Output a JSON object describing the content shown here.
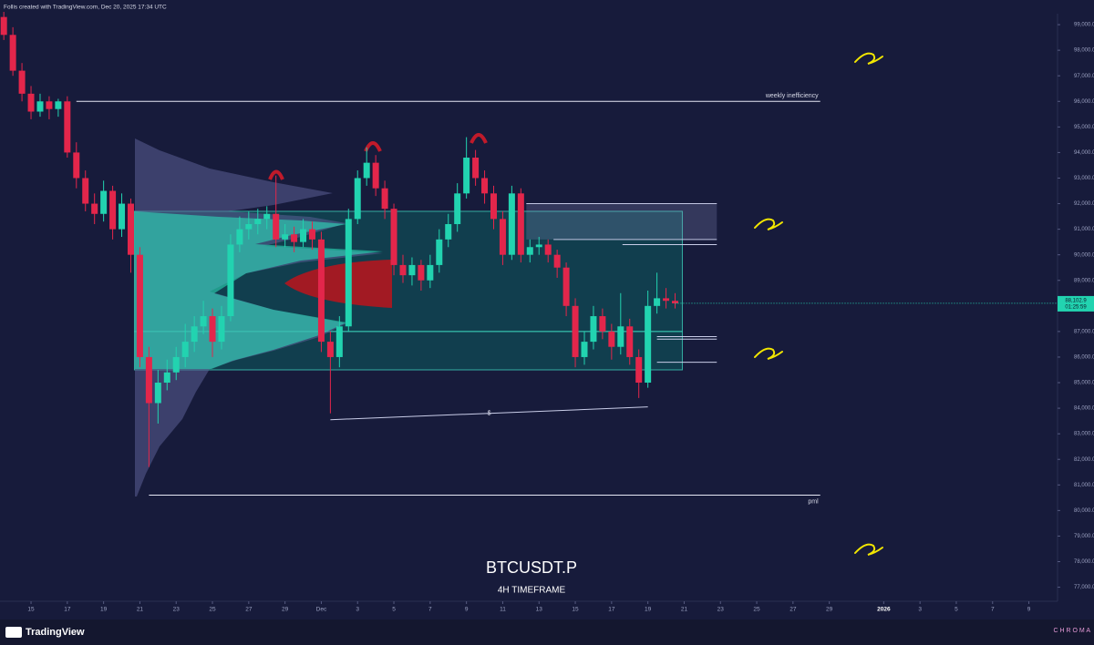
{
  "header": "Follis created with TradingView.com, Dec 20, 2025 17:34 UTC",
  "chart_data": {
    "type": "candlestick",
    "title": "BTCUSDT.P",
    "subtitle": "4H TIMEFRAME",
    "up_color": "#22d3b0",
    "down_color": "#e3264b",
    "x": [
      -1.5,
      -1,
      -0.5,
      0,
      0.5,
      1,
      1.5,
      2,
      2.5,
      3,
      3.5,
      4,
      4.5,
      5,
      5.5,
      6,
      6.5,
      7,
      7.5,
      8,
      8.5,
      9,
      9.5,
      10,
      10.5,
      11,
      11.5,
      12,
      12.5,
      13,
      13.5,
      14,
      14.5,
      15,
      15.5,
      16,
      16.5,
      17,
      17.5,
      18,
      18.5,
      19,
      19.5,
      20,
      20.5,
      21,
      21.5,
      22,
      22.5,
      23,
      23.5,
      24,
      24.5,
      25,
      25.5,
      26,
      26.5,
      27,
      27.5,
      28,
      28.5,
      29,
      29.5,
      30,
      30.5,
      31,
      31.5,
      32,
      32.5,
      33,
      33.5,
      34,
      34.5,
      35,
      35.5
    ],
    "open": [
      99300,
      98600,
      97200,
      96300,
      95600,
      96000,
      95700,
      96000,
      94000,
      93000,
      92000,
      91600,
      92500,
      91000,
      92000,
      90000,
      86000,
      84200,
      85000,
      85400,
      86000,
      86600,
      87200,
      87600,
      86600,
      87600,
      90400,
      91000,
      91200,
      91400,
      91600,
      90600,
      90800,
      90500,
      91000,
      90600,
      86600,
      86000,
      87200,
      91400,
      93000,
      93600,
      92600,
      91800,
      89600,
      89200,
      89600,
      89000,
      89600,
      90600,
      91200,
      92400,
      93800,
      93000,
      92400,
      91400,
      90000,
      92400,
      90000,
      90300,
      90400,
      90000,
      89500,
      88000,
      86000,
      86600,
      87600,
      87000,
      86400,
      87200,
      86000,
      85000,
      88000,
      88300,
      88200
    ],
    "high": [
      99500,
      98900,
      97500,
      96600,
      96300,
      96200,
      96100,
      96200,
      94400,
      93300,
      92400,
      92900,
      92700,
      92400,
      92200,
      90300,
      86400,
      85500,
      85900,
      86400,
      87300,
      87600,
      88200,
      87900,
      88000,
      90800,
      91500,
      91700,
      91800,
      91900,
      93100,
      91200,
      91100,
      91400,
      91300,
      90900,
      87000,
      87600,
      91800,
      93300,
      94200,
      93900,
      92900,
      92000,
      90000,
      89900,
      89800,
      90000,
      91000,
      91600,
      92800,
      94600,
      94100,
      93300,
      92700,
      91700,
      92700,
      92600,
      90600,
      90700,
      90600,
      90200,
      89700,
      88300,
      87000,
      88000,
      87900,
      87300,
      88500,
      87500,
      86300,
      88600,
      89300,
      88700,
      88500
    ],
    "low": [
      98400,
      97000,
      96000,
      95300,
      95400,
      95300,
      95400,
      93800,
      92600,
      91700,
      91200,
      91300,
      90600,
      90700,
      89300,
      85600,
      81700,
      83400,
      84700,
      85100,
      85600,
      86200,
      86900,
      86000,
      86300,
      87400,
      90100,
      90600,
      90800,
      91000,
      90300,
      90300,
      90100,
      90300,
      90200,
      86200,
      83800,
      85600,
      87000,
      91200,
      92700,
      92300,
      91400,
      89200,
      88900,
      88800,
      88600,
      88700,
      89300,
      90300,
      90900,
      92200,
      92700,
      92000,
      91000,
      89600,
      89800,
      89700,
      89700,
      90000,
      89700,
      89100,
      87600,
      85600,
      85700,
      86300,
      86700,
      85900,
      86100,
      85700,
      84400,
      84800,
      87700,
      87900,
      87900
    ],
    "close": [
      98600,
      97200,
      96300,
      95600,
      96000,
      95700,
      96000,
      94000,
      93000,
      92000,
      91600,
      92500,
      91000,
      92000,
      90000,
      86000,
      84200,
      85000,
      85400,
      86000,
      86600,
      87200,
      87600,
      86600,
      87600,
      90400,
      91000,
      91200,
      91400,
      91600,
      90600,
      90800,
      90500,
      91000,
      90600,
      86600,
      86000,
      87200,
      91400,
      93000,
      93600,
      92600,
      91800,
      89600,
      89200,
      89600,
      89000,
      89600,
      90600,
      91200,
      92400,
      93800,
      93000,
      92400,
      91400,
      90000,
      92400,
      90000,
      90300,
      90400,
      90000,
      89500,
      88000,
      86000,
      86600,
      87600,
      87000,
      86400,
      87200,
      86000,
      85000,
      88000,
      88300,
      88200,
      88100
    ],
    "last_price": {
      "value": 88102.9,
      "label": "88,102.9"
    },
    "countdown": "01:25:59",
    "xlim": [
      -1.71,
      56.58
    ],
    "xticks": [
      {
        "value": 0,
        "label": "15"
      },
      {
        "value": 2,
        "label": "17"
      },
      {
        "value": 4,
        "label": "19"
      },
      {
        "value": 6,
        "label": "21"
      },
      {
        "value": 8,
        "label": "23"
      },
      {
        "value": 10,
        "label": "25"
      },
      {
        "value": 12,
        "label": "27"
      },
      {
        "value": 14,
        "label": "29"
      },
      {
        "value": 16,
        "label": "Dec"
      },
      {
        "value": 18,
        "label": "3"
      },
      {
        "value": 20,
        "label": "5"
      },
      {
        "value": 22,
        "label": "7"
      },
      {
        "value": 24,
        "label": "9"
      },
      {
        "value": 26,
        "label": "11"
      },
      {
        "value": 28,
        "label": "13"
      },
      {
        "value": 30,
        "label": "15"
      },
      {
        "value": 32,
        "label": "17"
      },
      {
        "value": 34,
        "label": "19"
      },
      {
        "value": 36,
        "label": "21"
      },
      {
        "value": 38,
        "label": "23"
      },
      {
        "value": 40,
        "label": "25"
      },
      {
        "value": 42,
        "label": "27"
      },
      {
        "value": 44,
        "label": "29"
      },
      {
        "value": 47,
        "label": "2026"
      },
      {
        "value": 49,
        "label": "3"
      },
      {
        "value": 51,
        "label": "5"
      },
      {
        "value": 53,
        "label": "7"
      },
      {
        "value": 55,
        "label": "9"
      }
    ],
    "ylim": [
      76450,
      99430
    ],
    "yticks": [
      {
        "value": 77000,
        "label": "77,000.0"
      },
      {
        "value": 78000,
        "label": "78,000.0"
      },
      {
        "value": 79000,
        "label": "79,000.0"
      },
      {
        "value": 80000,
        "label": "80,000.0"
      },
      {
        "value": 81000,
        "label": "81,000.0"
      },
      {
        "value": 82000,
        "label": "82,000.0"
      },
      {
        "value": 83000,
        "label": "83,000.0"
      },
      {
        "value": 84000,
        "label": "84,000.0"
      },
      {
        "value": 85000,
        "label": "85,000.0"
      },
      {
        "value": 86000,
        "label": "86,000.0"
      },
      {
        "value": 87000,
        "label": "87,000.0"
      },
      {
        "value": 88000,
        "label": "88,000.0"
      },
      {
        "value": 89000,
        "label": "89,000.0"
      },
      {
        "value": 90000,
        "label": "90,000.0"
      },
      {
        "value": 91000,
        "label": "91,000.0"
      },
      {
        "value": 92000,
        "label": "92,000.0"
      },
      {
        "value": 93000,
        "label": "93,000.0"
      },
      {
        "value": 94000,
        "label": "94,000.0"
      },
      {
        "value": 95000,
        "label": "95,000.0"
      },
      {
        "value": 96000,
        "label": "96,000.0"
      },
      {
        "value": 97000,
        "label": "97,000.0"
      },
      {
        "value": 98000,
        "label": "98,000.0"
      },
      {
        "value": 99000,
        "label": "99,000.0"
      }
    ],
    "annotations": [
      {
        "text": "weekly inefficiency",
        "value": 96000,
        "from": 2.5,
        "to": 43.5
      },
      {
        "text": "pml",
        "value": 80600,
        "from": 6.5,
        "to": 43.5
      },
      {
        "text": "$",
        "x": [
          16.5,
          34
        ],
        "y": [
          83550,
          84050
        ]
      }
    ],
    "value_area": {
      "high": 91700,
      "low": 85500,
      "poc": 87000,
      "from": 5.7,
      "to": 35.9,
      "color": "#0f4a55"
    },
    "levels": [
      {
        "value": 92000,
        "from": 27.3
      },
      {
        "value": 90600,
        "from": 28.8
      },
      {
        "value": 90400,
        "from": 32.6
      },
      {
        "value": 86800,
        "from": 34.5
      },
      {
        "value": 86700,
        "from": 34.5
      },
      {
        "value": 85800,
        "from": 34.5
      }
    ],
    "levels_to": 37.8
  },
  "footer": {
    "logo": "TradingView",
    "brand": "C H R O M A"
  }
}
